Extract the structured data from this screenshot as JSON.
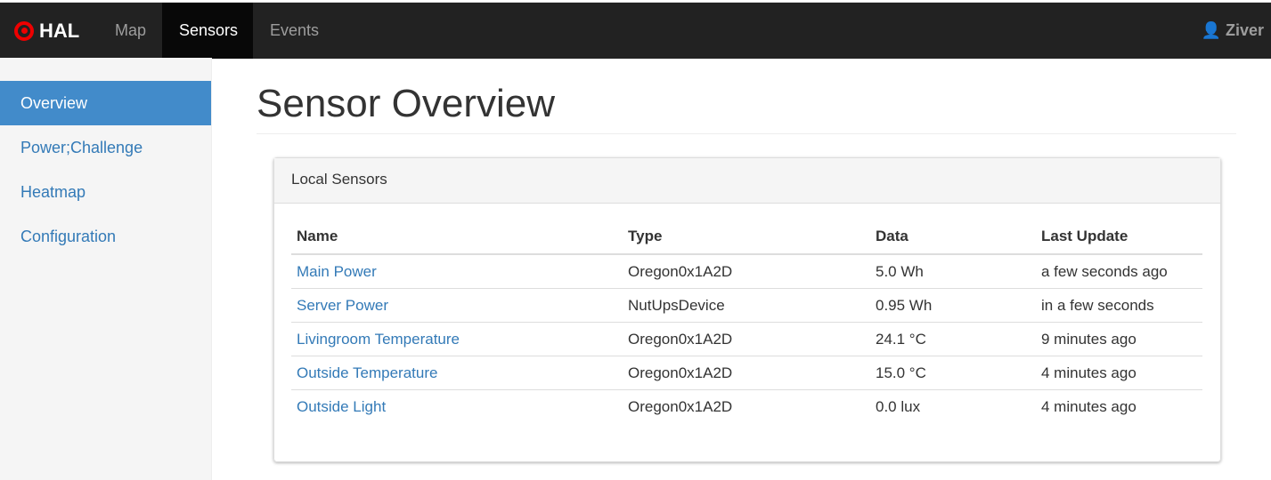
{
  "brand": "HAL",
  "nav": [
    "Map",
    "Sensors",
    "Events"
  ],
  "user": "Ziver",
  "sidebar": [
    "Overview",
    "Power;Challenge",
    "Heatmap",
    "Configuration"
  ],
  "title": "Sensor Overview",
  "panel_title": "Local Sensors",
  "columns": [
    "Name",
    "Type",
    "Data",
    "Last Update"
  ],
  "rows": [
    [
      "Main Power",
      "Oregon0x1A2D",
      "5.0 Wh",
      "a few seconds ago"
    ],
    [
      "Server Power",
      "NutUpsDevice",
      "0.95 Wh",
      "in a few seconds"
    ],
    [
      "Livingroom Temperature",
      "Oregon0x1A2D",
      "24.1 °C",
      "9 minutes ago"
    ],
    [
      "Outside Temperature",
      "Oregon0x1A2D",
      "15.0 °C",
      "4 minutes ago"
    ],
    [
      "Outside Light",
      "Oregon0x1A2D",
      "0.0 lux",
      "4 minutes ago"
    ]
  ]
}
